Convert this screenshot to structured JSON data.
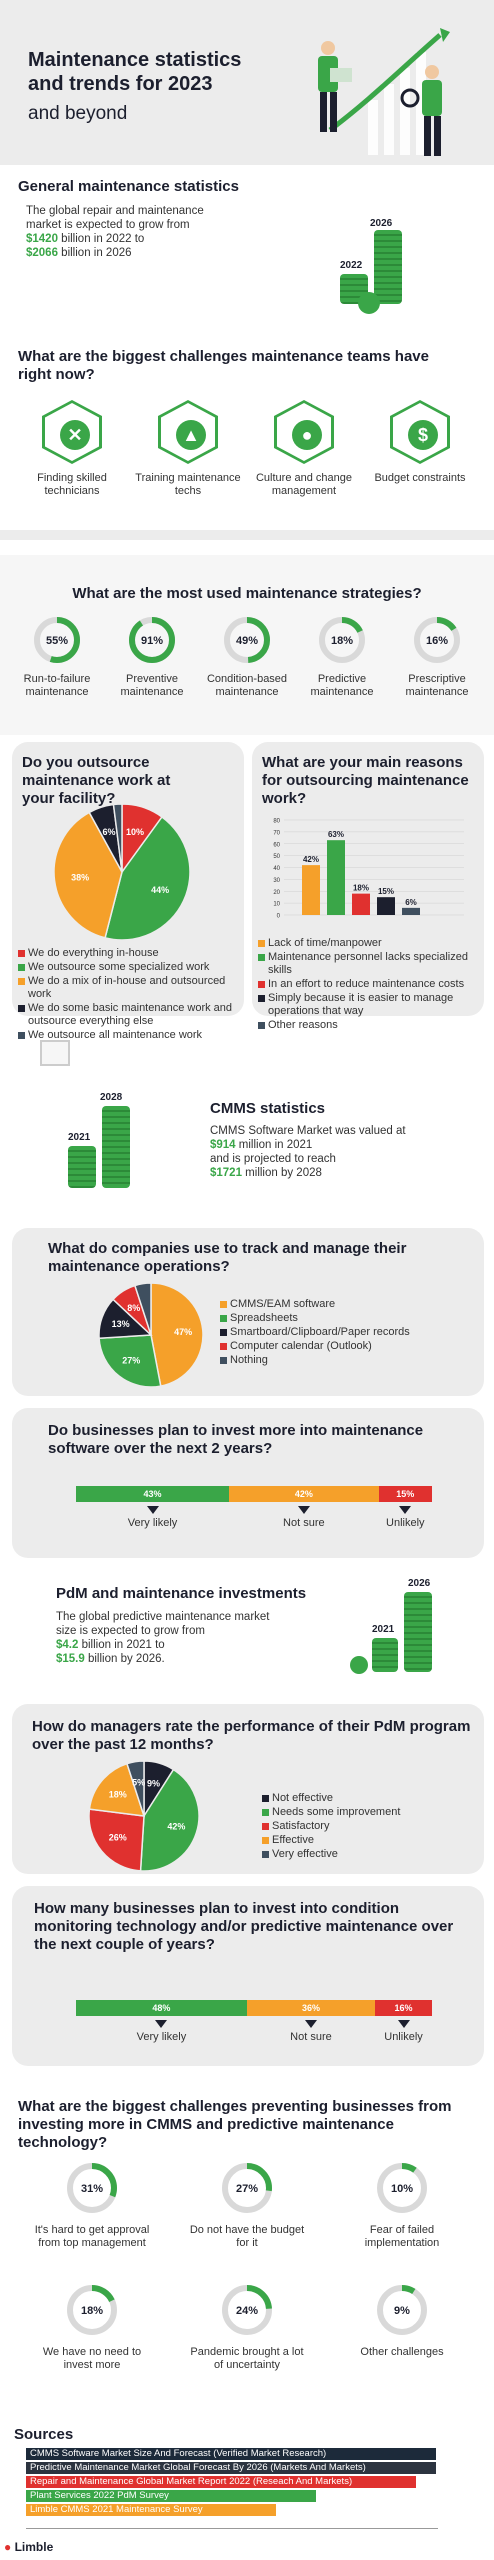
{
  "header": {
    "title": "Maintenance statistics and trends for 2023",
    "subtitle": "and beyond"
  },
  "general": {
    "title": "General maintenance statistics",
    "line1": "The global repair and maintenance",
    "line2": "market is expected to grow from",
    "value_2022": "$1420",
    "value_2022_rest": " billion in 2022 to",
    "value_2026": "$2066",
    "value_2026_rest": " billion in 2026",
    "year_start": "2022",
    "year_end": "2026"
  },
  "challenges": {
    "title": "What are the biggest challenges maintenance teams have right now?",
    "items": [
      {
        "label": "Finding skilled technicians",
        "icon": "wrench-icon",
        "glyph": "✕"
      },
      {
        "label": "Training maintenance techs",
        "icon": "graduation-cap-icon",
        "glyph": "▲"
      },
      {
        "label": "Culture and change management",
        "icon": "person-icon",
        "glyph": "●"
      },
      {
        "label": "Budget constraints",
        "icon": "dollar-icon",
        "glyph": "$"
      }
    ]
  },
  "strategies": {
    "title": "What are the most used maintenance strategies?",
    "items": [
      {
        "pct": 55,
        "label": "Run-to-failure maintenance"
      },
      {
        "pct": 91,
        "label": "Preventive maintenance"
      },
      {
        "pct": 49,
        "label": "Condition-based maintenance"
      },
      {
        "pct": 18,
        "label": "Predictive maintenance"
      },
      {
        "pct": 16,
        "label": "Prescriptive maintenance"
      }
    ]
  },
  "outsource": {
    "title": "Do you outsource maintenance work at your facility?",
    "legend": [
      {
        "label": "We do everything in-house",
        "color": "#e0312f"
      },
      {
        "label": "We outsource some specialized work",
        "color": "#3aa648"
      },
      {
        "label": "We do a mix of in-house and outsourced work",
        "color": "#f5a02a"
      },
      {
        "label": "We do some basic maintenance work and outsource everything else",
        "color": "#1c1f2e"
      },
      {
        "label": "We outsource all maintenance work",
        "color": "#3f4f5f"
      }
    ]
  },
  "reasons": {
    "title": "What are your main reasons for outsourcing maintenance work?",
    "legend": [
      {
        "label": "Lack of time/manpower",
        "color": "#f5a02a"
      },
      {
        "label": "Maintenance personnel lacks specialized skills",
        "color": "#3aa648"
      },
      {
        "label": "In an effort to reduce maintenance costs",
        "color": "#e0312f"
      },
      {
        "label": "Simply because it is easier to manage operations that way",
        "color": "#1c1f2e"
      },
      {
        "label": "Other reasons",
        "color": "#3f4f5f"
      }
    ]
  },
  "cmms": {
    "title": "CMMS statistics",
    "line1": "CMMS Software Market was valued at",
    "value_2021": "$914",
    "value_2021_rest": " million in 2021",
    "line3": "and is projected to reach",
    "value_2028": "$1721",
    "value_2028_rest": " million by 2028",
    "year_start": "2021",
    "year_end": "2028"
  },
  "track": {
    "title": "What do companies use to track and manage their maintenance operations?",
    "legend": [
      {
        "label": "CMMS/EAM software",
        "color": "#f5a02a"
      },
      {
        "label": "Spreadsheets",
        "color": "#3aa648"
      },
      {
        "label": "Smartboard/Clipboard/Paper records",
        "color": "#1c1f2e"
      },
      {
        "label": "Computer calendar (Outlook)",
        "color": "#e0312f"
      },
      {
        "label": "Nothing",
        "color": "#3f4f5f"
      }
    ]
  },
  "invest_software": {
    "title": "Do businesses plan to invest more into maintenance software over the next 2 years?",
    "segments": [
      {
        "pct": 43,
        "label": "43%",
        "caption": "Very likely",
        "color": "#3aa648"
      },
      {
        "pct": 42,
        "label": "42%",
        "caption": "Not sure",
        "color": "#f5a02a"
      },
      {
        "pct": 15,
        "label": "15%",
        "caption": "Unlikely",
        "color": "#e0312f"
      }
    ]
  },
  "pdm": {
    "title": "PdM and maintenance investments",
    "line1": "The global predictive maintenance market",
    "line2": "size is expected to grow from",
    "value_2021": "$4.2",
    "value_2021_rest": " billion in 2021 to",
    "value_2026": "$15.9",
    "value_2026_rest": " billion by 2026.",
    "year_start": "2021",
    "year_end": "2026"
  },
  "rate": {
    "title": "How do managers rate the performance of their PdM program over the past 12 months?",
    "legend": [
      {
        "label": "Not effective",
        "color": "#1c1f2e"
      },
      {
        "label": "Needs some improvement",
        "color": "#3aa648"
      },
      {
        "label": "Satisfactory",
        "color": "#e0312f"
      },
      {
        "label": "Effective",
        "color": "#f5a02a"
      },
      {
        "label": "Very effective",
        "color": "#3f4f5f"
      }
    ]
  },
  "invest_condition": {
    "title": "How many businesses plan to invest into condition monitoring technology and/or predictive maintenance over the next couple of years?",
    "segments": [
      {
        "pct": 48,
        "label": "48%",
        "caption": "Very likely",
        "color": "#3aa648"
      },
      {
        "pct": 36,
        "label": "36%",
        "caption": "Not sure",
        "color": "#f5a02a"
      },
      {
        "pct": 16,
        "label": "16%",
        "caption": "Unlikely",
        "color": "#e0312f"
      }
    ]
  },
  "prevent": {
    "title": "What are the biggest challenges preventing businesses from investing more in CMMS and predictive maintenance technology?",
    "items": [
      {
        "pct": 31,
        "label": "It's hard to get approval from top management"
      },
      {
        "pct": 27,
        "label": "Do not have the budget for it"
      },
      {
        "pct": 10,
        "label": "Fear of failed implementation"
      },
      {
        "pct": 18,
        "label": "We have no need to invest more"
      },
      {
        "pct": 24,
        "label": "Pandemic brought a lot of uncertainty"
      },
      {
        "pct": 9,
        "label": "Other challenges"
      }
    ]
  },
  "sources": {
    "title": "Sources",
    "items": [
      {
        "label": "CMMS Software Market Size And Forecast (Verified Market Research)",
        "color": "#1c2a3a"
      },
      {
        "label": "Predictive Maintenance Market Global Forecast By 2026 (Markets And Markets)",
        "color": "#2c3440"
      },
      {
        "label": "Repair and Maintenance Global Market Report 2022 (Reseach And Markets)",
        "color": "#e0312f"
      },
      {
        "label": "Plant Services 2022 PdM Survey",
        "color": "#3aa648"
      },
      {
        "label": "Limble CMMS 2021 Maintenance Survey",
        "color": "#f5a02a"
      }
    ]
  },
  "footer": {
    "brand": "Limble"
  },
  "chart_data": [
    {
      "type": "pie",
      "title": "Do you outsource maintenance work at your facility?",
      "labels": [
        "We do everything in-house",
        "We outsource some specialized work",
        "We do a mix of in-house and outsourced work",
        "We do some basic maintenance work and outsource everything else",
        "We outsource all maintenance work"
      ],
      "values": [
        10,
        44,
        38,
        6,
        2
      ],
      "value_labels": [
        "10%",
        "44%",
        "38%",
        "6%",
        ""
      ]
    },
    {
      "type": "bar",
      "title": "What are your main reasons for outsourcing maintenance work?",
      "categories": [
        "Lack of time/manpower",
        "Maintenance personnel lacks specialized skills",
        "In an effort to reduce maintenance costs",
        "Simply because it is easier to manage operations that way",
        "Other reasons"
      ],
      "values": [
        42,
        63,
        18,
        15,
        6
      ],
      "ylim": [
        0,
        80
      ],
      "yticks": [
        0,
        10,
        20,
        30,
        40,
        50,
        60,
        70,
        80
      ]
    },
    {
      "type": "pie",
      "title": "What do companies use to track and manage their maintenance operations?",
      "labels": [
        "CMMS/EAM software",
        "Spreadsheets",
        "Smartboard/Clipboard/Paper records",
        "Computer calendar (Outlook)",
        "Nothing"
      ],
      "values": [
        47,
        27,
        13,
        8,
        5
      ],
      "value_labels": [
        "47%",
        "27%",
        "13%",
        "8%",
        ""
      ]
    },
    {
      "type": "pie",
      "title": "How do managers rate the performance of their PdM program over the past 12 months?",
      "labels": [
        "Not effective",
        "Needs some improvement",
        "Satisfactory",
        "Effective",
        "Very effective"
      ],
      "values": [
        9,
        42,
        26,
        18,
        5
      ],
      "value_labels": [
        "9%",
        "42%",
        "26%",
        "18%",
        "5%"
      ]
    }
  ]
}
